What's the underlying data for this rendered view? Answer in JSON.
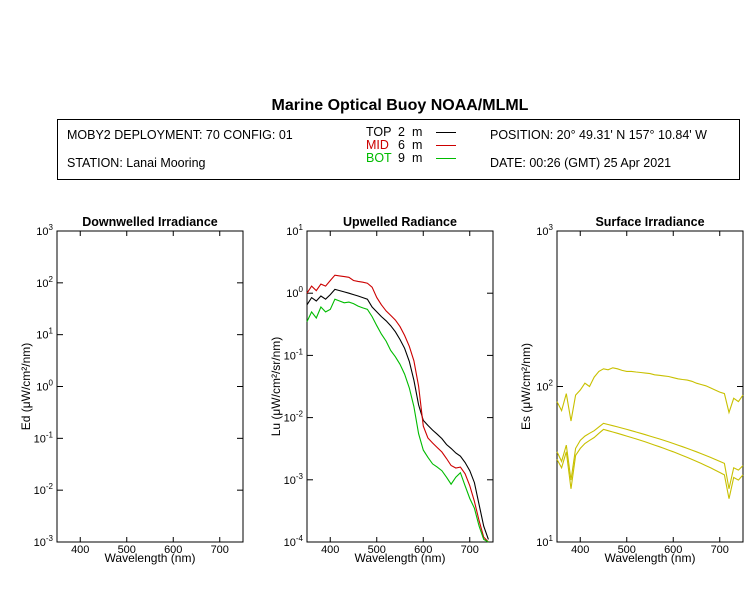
{
  "title": "Marine Optical Buoy NOAA/MLML",
  "info": {
    "deployment": "MOBY2 DEPLOYMENT: 70 CONFIG: 01",
    "station": "STATION: Lanai Mooring",
    "position": "POSITION: 20° 49.31' N   157° 10.84' W",
    "date": "DATE: 00:26 (GMT) 25 Apr 2021"
  },
  "legend": [
    {
      "name": "TOP",
      "depth": "2",
      "unit": "m",
      "color": "#000000"
    },
    {
      "name": "MID",
      "depth": "6",
      "unit": "m",
      "color": "#cc0000"
    },
    {
      "name": "BOT",
      "depth": "9",
      "unit": "m",
      "color": "#00bb00"
    }
  ],
  "chart_data": [
    {
      "type": "line",
      "title": "Downwelled Irradiance",
      "xlabel": "Wavelength (nm)",
      "ylabel": "Ed  (μW/cm²/nm)",
      "xlim": [
        350,
        750
      ],
      "ylim": [
        0.001,
        1000
      ],
      "yscale": "log",
      "xticks": [
        "400",
        "500",
        "600",
        "700"
      ],
      "yticks": [
        {
          "base": "10",
          "exp": "-3"
        },
        {
          "base": "10",
          "exp": "-2"
        },
        {
          "base": "10",
          "exp": "-1"
        },
        {
          "base": "10",
          "exp": "0"
        },
        {
          "base": "10",
          "exp": "1"
        },
        {
          "base": "10",
          "exp": "2"
        },
        {
          "base": "10",
          "exp": "3"
        }
      ],
      "series": []
    },
    {
      "type": "line",
      "title": "Upwelled Radiance",
      "xlabel": "Wavelength (nm)",
      "ylabel": "Lu  (μW/cm²/sr/nm)",
      "xlim": [
        350,
        750
      ],
      "ylim": [
        0.0001,
        10
      ],
      "yscale": "log",
      "xticks": [
        "400",
        "500",
        "600",
        "700"
      ],
      "yticks": [
        {
          "base": "10",
          "exp": "-4"
        },
        {
          "base": "10",
          "exp": "-3"
        },
        {
          "base": "10",
          "exp": "-2"
        },
        {
          "base": "10",
          "exp": "-1"
        },
        {
          "base": "10",
          "exp": "0"
        },
        {
          "base": "10",
          "exp": "1"
        }
      ],
      "series": [
        {
          "name": "TOP",
          "color": "#000000",
          "x": [
            350,
            360,
            370,
            380,
            390,
            400,
            410,
            420,
            430,
            440,
            450,
            460,
            470,
            480,
            490,
            500,
            510,
            520,
            530,
            540,
            550,
            560,
            570,
            580,
            590,
            600,
            610,
            620,
            630,
            640,
            650,
            660,
            670,
            680,
            690,
            700,
            710,
            720,
            730,
            740
          ],
          "y": [
            0.65,
            0.85,
            0.75,
            0.9,
            0.8,
            0.95,
            1.15,
            1.1,
            1.05,
            1.0,
            0.95,
            0.9,
            0.85,
            0.8,
            0.6,
            0.5,
            0.42,
            0.36,
            0.3,
            0.24,
            0.18,
            0.13,
            0.08,
            0.04,
            0.016,
            0.009,
            0.0075,
            0.0063,
            0.0054,
            0.0046,
            0.0037,
            0.0032,
            0.0027,
            0.0024,
            0.0019,
            0.0014,
            0.0009,
            0.0004,
            0.00018,
            0.00011
          ]
        },
        {
          "name": "MID",
          "color": "#cc0000",
          "x": [
            350,
            360,
            370,
            380,
            390,
            400,
            410,
            420,
            430,
            440,
            450,
            460,
            470,
            480,
            490,
            500,
            510,
            520,
            530,
            540,
            550,
            560,
            570,
            580,
            590,
            600,
            610,
            620,
            630,
            640,
            650,
            660,
            670,
            680,
            690,
            700,
            710,
            720,
            730,
            740
          ],
          "y": [
            1.0,
            1.3,
            1.1,
            1.4,
            1.3,
            1.6,
            1.95,
            1.9,
            1.85,
            1.8,
            1.6,
            1.55,
            1.5,
            1.45,
            1.25,
            0.85,
            0.65,
            0.52,
            0.44,
            0.37,
            0.29,
            0.21,
            0.14,
            0.082,
            0.032,
            0.0073,
            0.0047,
            0.0039,
            0.0033,
            0.0028,
            0.0022,
            0.0017,
            0.00155,
            0.0016,
            0.00125,
            0.0008,
            0.00045,
            0.00022,
            0.00012,
            0.0001
          ]
        },
        {
          "name": "BOT",
          "color": "#00bb00",
          "x": [
            350,
            360,
            370,
            380,
            390,
            400,
            410,
            420,
            430,
            440,
            450,
            460,
            470,
            480,
            490,
            500,
            510,
            520,
            530,
            540,
            550,
            560,
            570,
            580,
            590,
            600,
            610,
            620,
            630,
            640,
            650,
            660,
            670,
            680,
            690,
            700,
            710,
            720,
            730,
            740
          ],
          "y": [
            0.35,
            0.5,
            0.4,
            0.6,
            0.5,
            0.55,
            0.8,
            0.75,
            0.7,
            0.72,
            0.68,
            0.62,
            0.58,
            0.55,
            0.42,
            0.3,
            0.22,
            0.17,
            0.12,
            0.095,
            0.072,
            0.05,
            0.03,
            0.015,
            0.0055,
            0.003,
            0.0023,
            0.0018,
            0.0016,
            0.0014,
            0.0011,
            0.00085,
            0.0011,
            0.0013,
            0.0008,
            0.0005,
            0.00035,
            0.00018,
            0.00011,
            0.0001
          ]
        }
      ]
    },
    {
      "type": "line",
      "title": "Surface Irradiance",
      "xlabel": "Wavelength (nm)",
      "ylabel": "Es  (μW/cm²/nm)",
      "xlim": [
        350,
        750
      ],
      "ylim": [
        10,
        1000
      ],
      "yscale": "log",
      "xticks": [
        "400",
        "500",
        "600",
        "700"
      ],
      "yticks": [
        {
          "base": "10",
          "exp": "1"
        },
        {
          "base": "10",
          "exp": "2"
        },
        {
          "base": "10",
          "exp": "3"
        }
      ],
      "series": [
        {
          "color": "#c8c000",
          "x": [
            350,
            360,
            370,
            380,
            390,
            400,
            410,
            420,
            430,
            440,
            450,
            460,
            470,
            480,
            490,
            500,
            510,
            520,
            530,
            540,
            550,
            560,
            570,
            580,
            590,
            600,
            610,
            620,
            630,
            640,
            650,
            660,
            670,
            680,
            690,
            700,
            710,
            720,
            730,
            740,
            750
          ],
          "y": [
            80,
            70,
            90,
            60,
            88,
            95,
            105,
            100,
            115,
            125,
            130,
            128,
            132,
            130,
            127,
            125,
            125,
            124,
            123,
            122,
            121,
            119,
            118,
            117,
            116,
            114,
            112,
            111,
            110,
            108,
            105,
            103,
            101,
            98,
            95,
            92,
            90,
            68,
            84,
            80,
            88
          ]
        },
        {
          "color": "#c8c000",
          "x": [
            350,
            360,
            370,
            380,
            390,
            400,
            410,
            420,
            430,
            440,
            450,
            460,
            470,
            480,
            490,
            500,
            510,
            520,
            530,
            540,
            550,
            560,
            570,
            580,
            590,
            600,
            610,
            620,
            630,
            640,
            650,
            660,
            670,
            680,
            690,
            700,
            710,
            720,
            730,
            740,
            750
          ],
          "y": [
            38,
            33,
            42,
            25,
            40,
            45,
            48,
            50,
            52,
            55,
            58,
            57,
            56,
            55,
            54,
            53,
            52,
            51,
            50,
            49,
            48,
            47,
            46,
            45,
            44,
            43,
            42,
            41,
            40,
            39,
            38,
            37,
            36,
            35,
            34,
            33,
            32,
            22,
            30,
            29,
            31
          ]
        },
        {
          "color": "#c8c000",
          "x": [
            350,
            360,
            370,
            380,
            390,
            400,
            410,
            420,
            430,
            440,
            450,
            460,
            470,
            480,
            490,
            500,
            510,
            520,
            530,
            540,
            550,
            560,
            570,
            580,
            590,
            600,
            610,
            620,
            630,
            640,
            650,
            660,
            670,
            680,
            690,
            700,
            710,
            720,
            730,
            740,
            750
          ],
          "y": [
            34,
            30,
            38,
            22,
            36,
            40,
            43,
            45,
            47,
            50,
            53,
            52,
            51,
            50,
            49,
            48,
            47,
            46,
            45,
            44,
            43,
            42,
            41,
            40,
            39,
            38,
            37,
            36,
            35,
            34,
            33,
            32,
            31,
            30,
            29,
            28,
            27,
            19,
            26,
            25,
            27
          ]
        }
      ]
    }
  ]
}
